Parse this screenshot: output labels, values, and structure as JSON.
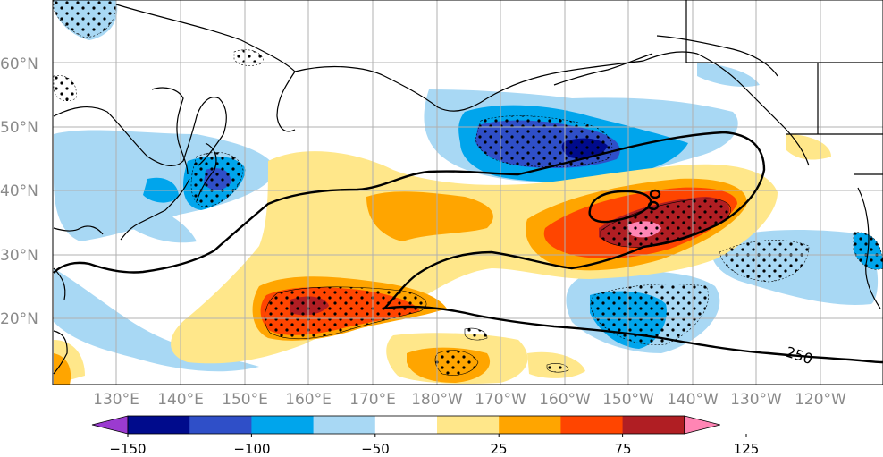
{
  "map": {
    "lat_labels": [
      "60°N",
      "50°N",
      "40°N",
      "30°N",
      "20°N"
    ],
    "lon_labels": [
      "130°E",
      "140°E",
      "150°E",
      "160°E",
      "170°E",
      "180°W",
      "170°W",
      "160°W",
      "150°W",
      "140°W",
      "130°W",
      "120°W"
    ],
    "contour_label": "250"
  },
  "colorbar": {
    "ticks": [
      "−150",
      "−100",
      "−50",
      "25",
      "75",
      "125"
    ],
    "colors": [
      "#9b3bd0",
      "#000b8c",
      "#2f4fc8",
      "#00a5ec",
      "#a8d8f4",
      "#ffffff",
      "#ffe78a",
      "#ffa500",
      "#ff4500",
      "#b01e23",
      "#ff85b4"
    ]
  },
  "colors": {
    "land_outline": "#000000",
    "grid": "#b0b0b0",
    "contour": "#000000",
    "stipple": "#000000"
  }
}
